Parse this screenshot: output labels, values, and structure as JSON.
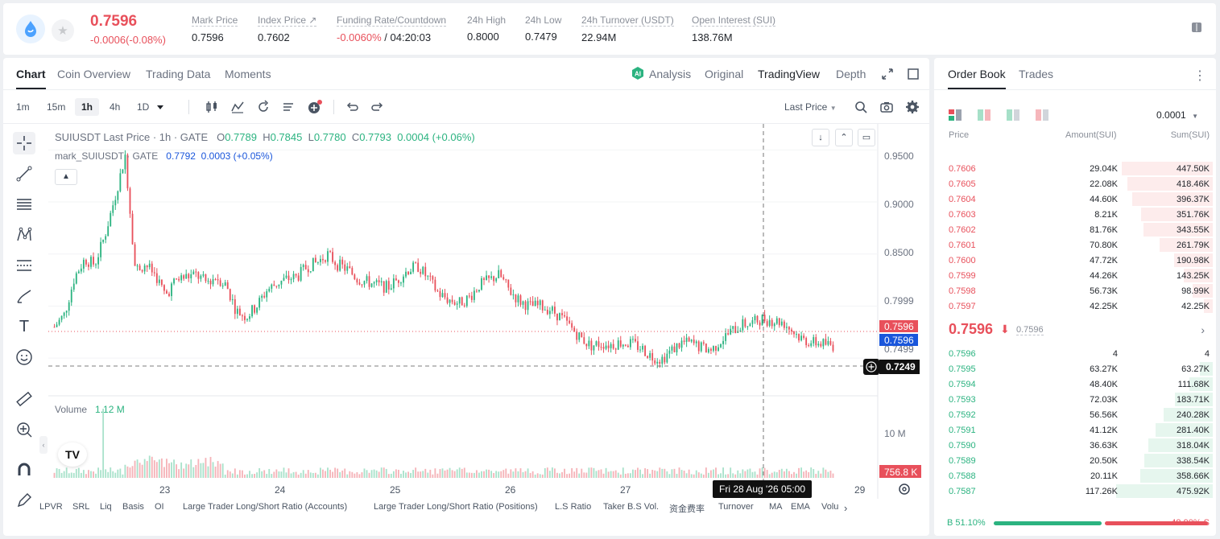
{
  "ticker": {
    "price": "0.7596",
    "change": "-0.0006(-0.08%)",
    "stats": [
      {
        "label": "Mark Price",
        "value": "0.7596"
      },
      {
        "label": "Index Price ↗",
        "value": "0.7602"
      },
      {
        "label": "Funding Rate/Countdown",
        "value_red": "-0.0060%",
        "value": " / 04:20:03"
      },
      {
        "label": "24h High",
        "value": "0.8000"
      },
      {
        "label": "24h Low",
        "value": "0.7479"
      },
      {
        "label": "24h Turnover (USDT)",
        "value": "22.94M"
      },
      {
        "label": "Open Interest (SUI)",
        "value": "138.76M"
      }
    ]
  },
  "chart_tabs": [
    "Chart",
    "Coin Overview",
    "Trading Data",
    "Moments"
  ],
  "view_tabs": [
    "Analysis",
    "Original",
    "TradingView",
    "Depth"
  ],
  "intervals": [
    "1m",
    "15m",
    "1h",
    "4h",
    "1D"
  ],
  "price_source": "Last Price",
  "legend": {
    "title": "SUIUSDT Last Price · 1h · GATE",
    "o_label": "O",
    "o": "0.7789",
    "h_label": "H",
    "h": "0.7845",
    "l_label": "L",
    "l": "0.7780",
    "c_label": "C",
    "c": "0.7793",
    "change": "0.0004 (+0.06%)",
    "mark_title": "mark_SUIUSDT · GATE",
    "mark_value": "0.7792",
    "mark_change": "0.0003 (+0.05%)"
  },
  "volume_label": "Volume",
  "volume_value": "1.12 M",
  "y_axis_ticks": [
    "0.9500",
    "0.9000",
    "0.8500",
    "0.7999",
    "0.7499"
  ],
  "volume_axis_tick": "10 M",
  "price_tags": {
    "last": "0.7596",
    "mark": "0.7596",
    "cross": "0.7249",
    "volume": "756.8 K"
  },
  "x_axis_ticks": [
    "23",
    "24",
    "25",
    "26",
    "27",
    "29"
  ],
  "crosshair_date": "Fri 28 Aug '26   05:00",
  "indicator_tabs": [
    "LPVR",
    "SRL",
    "Liq",
    "Basis",
    "OI",
    "Large Trader Long/Short Ratio (Accounts)",
    "Large Trader Long/Short Ratio (Positions)",
    "L.S Ratio",
    "Taker B.S Vol.",
    "资金费率",
    "Turnover",
    "MA",
    "EMA",
    "Volu"
  ],
  "chart_data": {
    "type": "candlestick",
    "title": "SUIUSDT Last Price · 1h · GATE",
    "ylim": [
      0.72,
      0.975
    ],
    "x_ticks": [
      "23",
      "24",
      "25",
      "26",
      "27",
      "29"
    ],
    "close_path": [
      0.78,
      0.792,
      0.828,
      0.845,
      0.84,
      0.868,
      0.905,
      0.945,
      0.835,
      0.84,
      0.83,
      0.81,
      0.825,
      0.828,
      0.83,
      0.823,
      0.828,
      0.82,
      0.795,
      0.79,
      0.8,
      0.815,
      0.822,
      0.826,
      0.828,
      0.838,
      0.842,
      0.85,
      0.84,
      0.835,
      0.826,
      0.823,
      0.82,
      0.818,
      0.826,
      0.835,
      0.838,
      0.826,
      0.812,
      0.806,
      0.803,
      0.808,
      0.82,
      0.825,
      0.83,
      0.815,
      0.805,
      0.8,
      0.8,
      0.797,
      0.79,
      0.78,
      0.77,
      0.762,
      0.764,
      0.763,
      0.765,
      0.764,
      0.76,
      0.752,
      0.749,
      0.757,
      0.765,
      0.764,
      0.76,
      0.758,
      0.768,
      0.776,
      0.782,
      0.784,
      0.788,
      0.786,
      0.785,
      0.776,
      0.768,
      0.765,
      0.764,
      0.762
    ],
    "volume_note": "volume bars per candle, max ~1.12M"
  },
  "order_book": {
    "tabs": [
      "Order Book",
      "Trades"
    ],
    "precision": "0.0001",
    "headers": [
      "Price",
      "Amount(SUI)",
      "Sum(SUI)"
    ],
    "asks": [
      {
        "price": "0.7606",
        "amount": "29.04K",
        "sum": "447.50K",
        "depth": 0.94
      },
      {
        "price": "0.7605",
        "amount": "22.08K",
        "sum": "418.46K",
        "depth": 0.88
      },
      {
        "price": "0.7604",
        "amount": "44.60K",
        "sum": "396.37K",
        "depth": 0.83
      },
      {
        "price": "0.7603",
        "amount": "8.21K",
        "sum": "351.76K",
        "depth": 0.74
      },
      {
        "price": "0.7602",
        "amount": "81.76K",
        "sum": "343.55K",
        "depth": 0.72
      },
      {
        "price": "0.7601",
        "amount": "70.80K",
        "sum": "261.79K",
        "depth": 0.55
      },
      {
        "price": "0.7600",
        "amount": "47.72K",
        "sum": "190.98K",
        "depth": 0.4
      },
      {
        "price": "0.7599",
        "amount": "44.26K",
        "sum": "143.25K",
        "depth": 0.3
      },
      {
        "price": "0.7598",
        "amount": "56.73K",
        "sum": "98.99K",
        "depth": 0.21
      },
      {
        "price": "0.7597",
        "amount": "42.25K",
        "sum": "42.25K",
        "depth": 0.09
      }
    ],
    "mid_price": "0.7596",
    "mid_arrow": "⬇",
    "mid_mark": "0.7596",
    "bids": [
      {
        "price": "0.7596",
        "amount": "4",
        "sum": "4",
        "depth": 0.0
      },
      {
        "price": "0.7595",
        "amount": "63.27K",
        "sum": "63.27K",
        "depth": 0.13
      },
      {
        "price": "0.7594",
        "amount": "48.40K",
        "sum": "111.68K",
        "depth": 0.24
      },
      {
        "price": "0.7593",
        "amount": "72.03K",
        "sum": "183.71K",
        "depth": 0.39
      },
      {
        "price": "0.7592",
        "amount": "56.56K",
        "sum": "240.28K",
        "depth": 0.51
      },
      {
        "price": "0.7591",
        "amount": "41.12K",
        "sum": "281.40K",
        "depth": 0.59
      },
      {
        "price": "0.7590",
        "amount": "36.63K",
        "sum": "318.04K",
        "depth": 0.67
      },
      {
        "price": "0.7589",
        "amount": "20.50K",
        "sum": "338.54K",
        "depth": 0.71
      },
      {
        "price": "0.7588",
        "amount": "20.11K",
        "sum": "358.66K",
        "depth": 0.75
      },
      {
        "price": "0.7587",
        "amount": "117.26K",
        "sum": "475.92K",
        "depth": 1.0
      }
    ],
    "buy_ratio": "B 51.10%",
    "sell_ratio": "48.90% S",
    "buy_fraction": 0.511
  },
  "colors": {
    "up": "#2bb380",
    "down": "#e8505b",
    "mark_tag": "#1a56db"
  }
}
